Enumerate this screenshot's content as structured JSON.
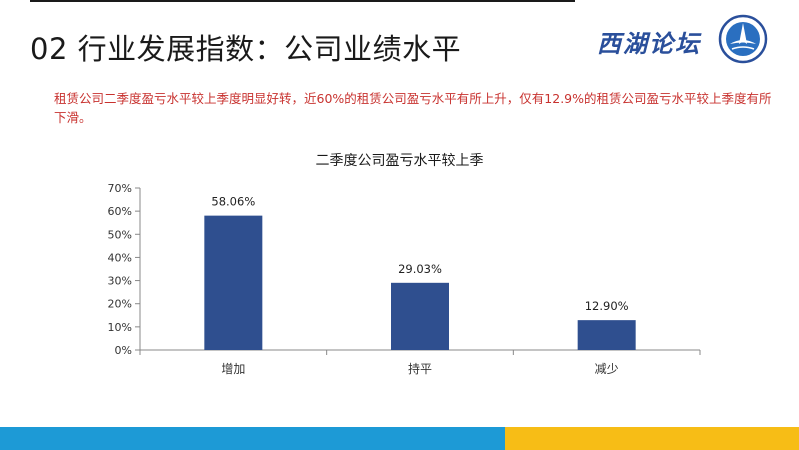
{
  "slide": {
    "title": "02 行业发展指数：公司业绩水平",
    "logo_text": "西湖论坛",
    "summary": "租赁公司二季度盈亏水平较上季度明显好转，近60%的租赁公司盈亏水平有所上升，仅有12.9%的租赁公司盈亏水平较上季度有所下滑。"
  },
  "colors": {
    "bar": "#2f4f8f",
    "accent_red": "#c8322f",
    "band_blue": "#1d9ad6",
    "band_yellow": "#f7bd16",
    "logo_blue": "#2a4f9b"
  },
  "chart_data": {
    "type": "bar",
    "title": "二季度公司盈亏水平较上季",
    "categories": [
      "增加",
      "持平",
      "减少"
    ],
    "values": [
      58.06,
      29.03,
      12.9
    ],
    "value_labels": [
      "58.06%",
      "29.03%",
      "12.90%"
    ],
    "ylim": [
      0,
      70
    ],
    "yticks": [
      "0%",
      "10%",
      "20%",
      "30%",
      "40%",
      "50%",
      "60%",
      "70%"
    ],
    "grid": false,
    "legend": "none"
  }
}
